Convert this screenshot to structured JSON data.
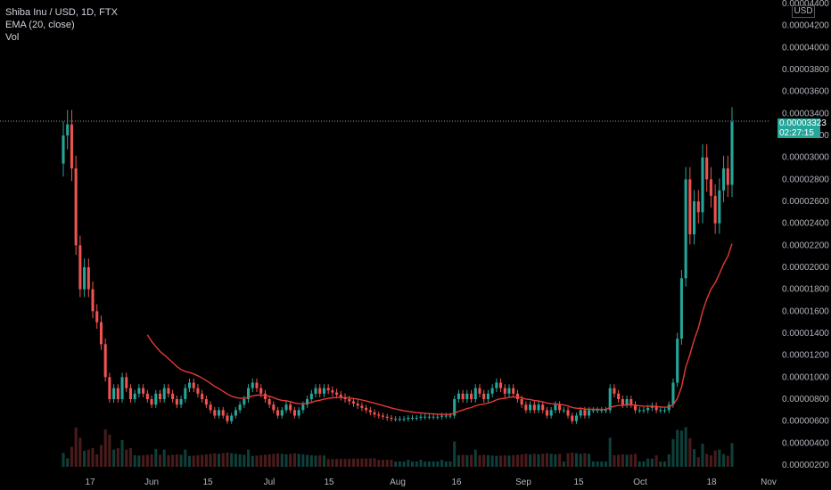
{
  "legend": {
    "symbol_line": "Shiba Inu / USD, 1D, FTX",
    "ema_line": "EMA (20, close)",
    "vol_line": "Vol"
  },
  "price_axis": {
    "currency_badge": "USD",
    "ticks": [
      "0.00004400",
      "0.00004200",
      "0.00004000",
      "0.00003800",
      "0.00003600",
      "0.00003400",
      "0.00003200",
      "0.00003000",
      "0.00002800",
      "0.00002600",
      "0.00002400",
      "0.00002200",
      "0.00002000",
      "0.00001800",
      "0.00001600",
      "0.00001400",
      "0.00001200",
      "0.00001000",
      "0.00000800",
      "0.00000600",
      "0.00000400",
      "0.00000200"
    ],
    "last_price": "0.00003323",
    "countdown": "02:27:15"
  },
  "time_axis": {
    "ticks": [
      "17",
      "Jun",
      "15",
      "Jul",
      "15",
      "Aug",
      "16",
      "Sep",
      "15",
      "Oct",
      "18",
      "Nov"
    ]
  },
  "colors": {
    "up": "#26a69a",
    "down": "#ef5350",
    "ema": "#e53935",
    "background": "#000000"
  },
  "chart_data": {
    "type": "candlestick",
    "series_name": "Shiba Inu / USD, 1D, FTX",
    "ylim": [
      2e-06,
      4.4e-05
    ],
    "close_series": [
      3.2e-05,
      3.3e-05,
      2.9e-05,
      2.2e-05,
      1.8e-05,
      2e-05,
      1.8e-05,
      1.6e-05,
      1.5e-05,
      1.3e-05,
      1e-05,
      8e-06,
      9e-06,
      8e-06,
      1e-05,
      9e-06,
      8e-06,
      8.5e-06,
      9e-06,
      8.5e-06,
      8e-06,
      7.5e-06,
      8.5e-06,
      8e-06,
      9e-06,
      8.5e-06,
      8e-06,
      7.5e-06,
      8e-06,
      9e-06,
      9.5e-06,
      9e-06,
      8.5e-06,
      8e-06,
      7.5e-06,
      7e-06,
      6.5e-06,
      7e-06,
      6.5e-06,
      6e-06,
      6.5e-06,
      7e-06,
      7.5e-06,
      8e-06,
      9e-06,
      9.5e-06,
      9e-06,
      8.5e-06,
      8e-06,
      7.5e-06,
      7e-06,
      6.5e-06,
      7e-06,
      7.5e-06,
      7e-06,
      6.5e-06,
      7e-06,
      7.5e-06,
      8e-06,
      8.5e-06,
      9e-06,
      8.5e-06,
      9e-06,
      8.8e-06,
      8.6e-06,
      8.4e-06,
      8.2e-06,
      8e-06,
      7.8e-06,
      7.6e-06,
      7.4e-06,
      7.2e-06,
      7e-06,
      6.8e-06,
      6.6e-06,
      6.5e-06,
      6.4e-06,
      6.3e-06,
      6.2e-06,
      6.2e-06,
      6.2e-06,
      6.2e-06,
      6.3e-06,
      6.3e-06,
      6.3e-06,
      6.4e-06,
      6.4e-06,
      6.4e-06,
      6.4e-06,
      6.4e-06,
      6.5e-06,
      6.5e-06,
      6.5e-06,
      8e-06,
      8.5e-06,
      8e-06,
      8.5e-06,
      8e-06,
      9e-06,
      8.5e-06,
      8e-06,
      8.5e-06,
      9e-06,
      9.5e-06,
      9e-06,
      8.5e-06,
      9e-06,
      8.5e-06,
      8e-06,
      7.5e-06,
      7e-06,
      7.5e-06,
      7e-06,
      7.5e-06,
      7e-06,
      6.5e-06,
      7e-06,
      7.5e-06,
      7e-06,
      7e-06,
      6.5e-06,
      6e-06,
      6.5e-06,
      7e-06,
      6.5e-06,
      7e-06,
      7e-06,
      7e-06,
      7e-06,
      7e-06,
      9e-06,
      8.5e-06,
      8e-06,
      7.5e-06,
      8e-06,
      7.5e-06,
      7e-06,
      7e-06,
      7e-06,
      7.2e-06,
      7.4e-06,
      7e-06,
      7e-06,
      7e-06,
      7.5e-06,
      9.5e-06,
      1.35e-05,
      1.9e-05,
      2.8e-05,
      2.3e-05,
      2.6e-05,
      2.5e-05,
      3e-05,
      2.8e-05,
      2.65e-05,
      2.4e-05,
      2.7e-05,
      2.9e-05,
      2.75e-05,
      3.323e-05
    ],
    "ema_period": 20,
    "last_price": 3.323e-05
  }
}
